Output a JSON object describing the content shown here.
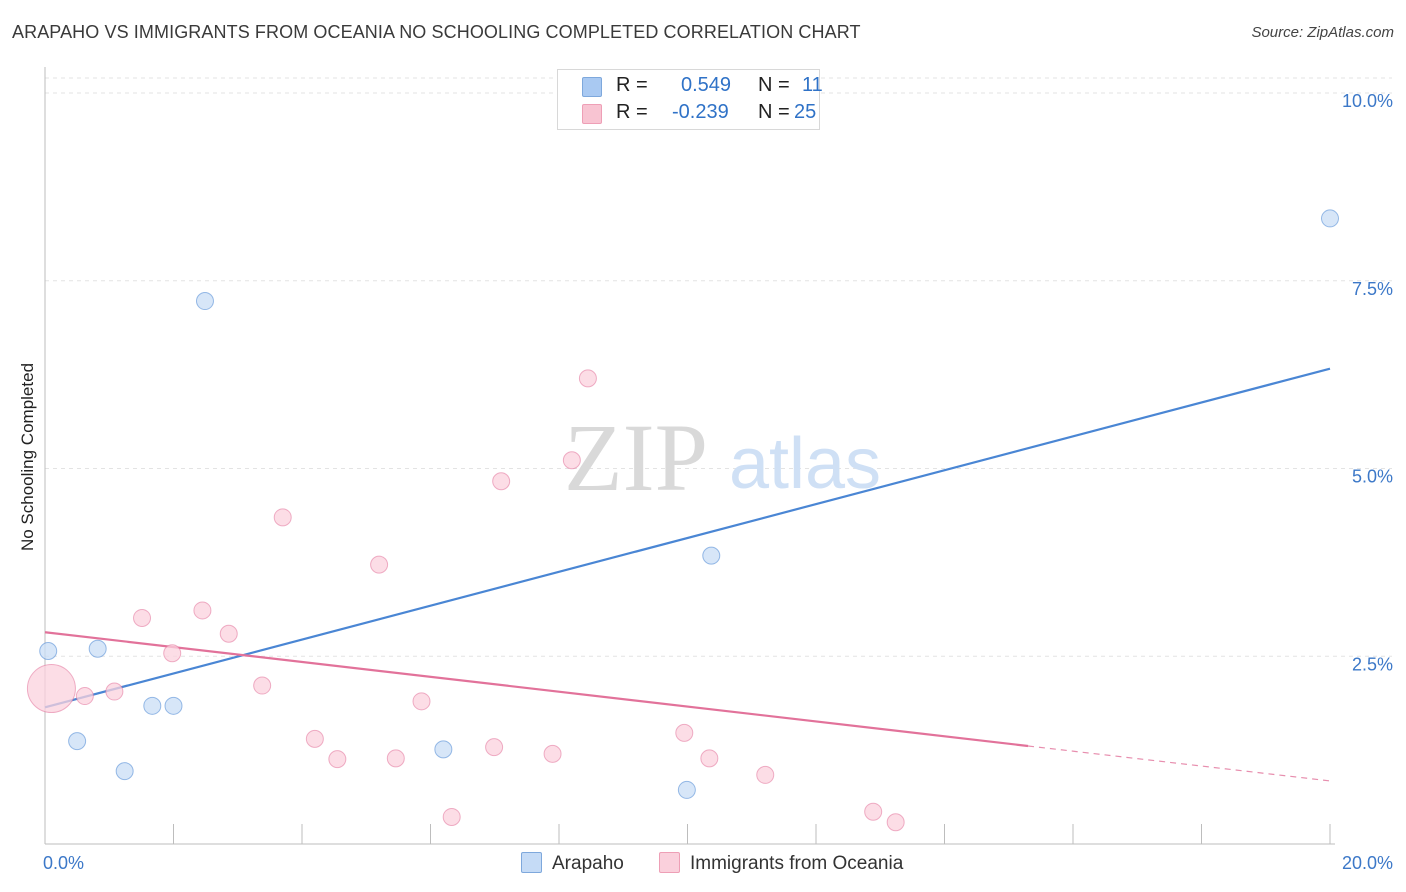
{
  "header": {
    "title": "ARAPAHO VS IMMIGRANTS FROM OCEANIA NO SCHOOLING COMPLETED CORRELATION CHART",
    "source": "Source: ZipAtlas.com"
  },
  "watermark": {
    "zip": "ZIP",
    "atlas": "atlas"
  },
  "stats": [
    {
      "r_label": "R =",
      "r_value": "0.549",
      "n_label": "N =",
      "n_value": "11",
      "color": "#a9c9f2",
      "border": "#7ea8dc"
    },
    {
      "r_label": "R =",
      "r_value": "-0.239",
      "n_label": "N =",
      "n_value": "25",
      "color": "#f8c4d2",
      "border": "#ee9fb6"
    }
  ],
  "legend": [
    {
      "label": "Arapaho",
      "color": "#c5dbf6",
      "border": "#7ea8dc"
    },
    {
      "label": "Immigrants from Oceania",
      "color": "#fad0dc",
      "border": "#ee9fb6"
    }
  ],
  "chart_data": {
    "type": "scatter",
    "title": "ARAPAHO VS IMMIGRANTS FROM OCEANIA NO SCHOOLING COMPLETED CORRELATION CHART",
    "xlabel": "",
    "ylabel": "No Schooling Completed",
    "xlim": [
      0,
      20
    ],
    "ylim": [
      0,
      10.2
    ],
    "x_tick_labels": [
      "0.0%",
      "20.0%"
    ],
    "y_ticks": [
      2.5,
      5.0,
      7.5,
      10.0
    ],
    "y_tick_labels": [
      "2.5%",
      "5.0%",
      "7.5%",
      "10.0%"
    ],
    "grid": true,
    "series": [
      {
        "name": "Arapaho",
        "color": "#4a86d4",
        "fill": "#c9ddf5",
        "points": [
          {
            "x": 0.05,
            "y": 2.57
          },
          {
            "x": 0.82,
            "y": 2.6
          },
          {
            "x": 0.5,
            "y": 1.37
          },
          {
            "x": 1.67,
            "y": 1.84
          },
          {
            "x": 2.0,
            "y": 1.84
          },
          {
            "x": 1.24,
            "y": 0.97
          },
          {
            "x": 2.49,
            "y": 7.23
          },
          {
            "x": 6.2,
            "y": 1.26
          },
          {
            "x": 10.37,
            "y": 3.84
          },
          {
            "x": 9.99,
            "y": 0.72
          },
          {
            "x": 20.0,
            "y": 8.33
          }
        ],
        "trend": {
          "x0": 0.0,
          "y0": 1.82,
          "x1": 20.0,
          "y1": 6.33,
          "solid_until": 20.0
        }
      },
      {
        "name": "Immigrants from Oceania",
        "color": "#e2729a",
        "fill": "#fbd2de",
        "points": [
          {
            "x": 0.1,
            "y": 2.07,
            "large": true
          },
          {
            "x": 0.62,
            "y": 1.97
          },
          {
            "x": 1.08,
            "y": 2.03
          },
          {
            "x": 1.51,
            "y": 3.01
          },
          {
            "x": 1.98,
            "y": 2.54
          },
          {
            "x": 2.45,
            "y": 3.11
          },
          {
            "x": 2.86,
            "y": 2.8
          },
          {
            "x": 3.38,
            "y": 2.11
          },
          {
            "x": 3.7,
            "y": 4.35
          },
          {
            "x": 4.2,
            "y": 1.4
          },
          {
            "x": 4.55,
            "y": 1.13
          },
          {
            "x": 5.2,
            "y": 3.72
          },
          {
            "x": 5.46,
            "y": 1.14
          },
          {
            "x": 5.86,
            "y": 1.9
          },
          {
            "x": 6.33,
            "y": 0.36
          },
          {
            "x": 6.99,
            "y": 1.29
          },
          {
            "x": 7.1,
            "y": 4.83
          },
          {
            "x": 7.9,
            "y": 1.2
          },
          {
            "x": 8.2,
            "y": 5.11
          },
          {
            "x": 8.45,
            "y": 6.2
          },
          {
            "x": 9.95,
            "y": 1.48
          },
          {
            "x": 10.34,
            "y": 1.14
          },
          {
            "x": 11.21,
            "y": 0.92
          },
          {
            "x": 12.89,
            "y": 0.43
          },
          {
            "x": 13.24,
            "y": 0.29
          }
        ],
        "trend": {
          "x0": 0.0,
          "y0": 2.82,
          "x1": 20.0,
          "y1": 0.84,
          "solid_until": 15.3
        }
      }
    ]
  }
}
